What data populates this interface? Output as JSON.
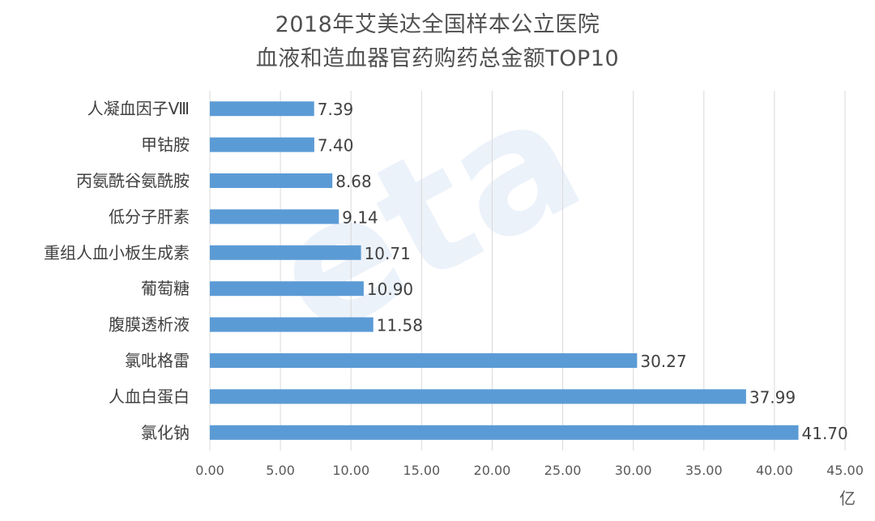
{
  "chart_data": {
    "type": "bar",
    "orientation": "horizontal",
    "title": "2018年艾美达全国样本公立医院",
    "subtitle": "血液和造血器官药购药总金额TOP10",
    "categories": [
      "人凝血因子Ⅷ",
      "甲钴胺",
      "丙氨酰谷氨酰胺",
      "低分子肝素",
      "重组人血小板生成素",
      "葡萄糖",
      "腹膜透析液",
      "氯吡格雷",
      "人血白蛋白",
      "氯化钠"
    ],
    "values": [
      7.39,
      7.4,
      8.68,
      9.14,
      10.71,
      10.9,
      11.58,
      30.27,
      37.99,
      41.7
    ],
    "value_labels": [
      "7.39",
      "7.40",
      "8.68",
      "9.14",
      "10.71",
      "10.90",
      "11.58",
      "30.27",
      "37.99",
      "41.70"
    ],
    "xlim": [
      0,
      45
    ],
    "x_ticks": [
      "0.00",
      "5.00",
      "10.00",
      "15.00",
      "20.00",
      "25.00",
      "30.00",
      "35.00",
      "40.00",
      "45.00"
    ],
    "x_tick_values": [
      0,
      5,
      10,
      15,
      20,
      25,
      30,
      35,
      40,
      45
    ],
    "xlabel": "亿",
    "ylabel": "",
    "grid": true,
    "bar_color": "#5b9bd5"
  }
}
